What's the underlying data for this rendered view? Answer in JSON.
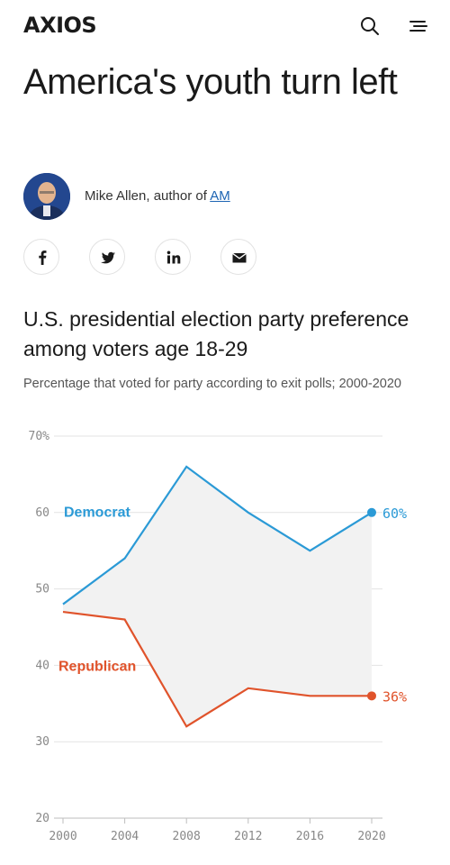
{
  "header": {
    "logo_text": "AXIOS",
    "search_icon": "search-icon",
    "menu_icon": "menu-icon"
  },
  "article": {
    "headline": "America's youth turn left",
    "byline_prefix": "Mike Allen, author of ",
    "byline_link": "AM"
  },
  "share": {
    "icons": [
      "facebook-icon",
      "twitter-icon",
      "linkedin-icon",
      "email-icon"
    ]
  },
  "colors": {
    "democrat": "#2b9ad6",
    "republican": "#e0532b",
    "fill": "#f2f2f2",
    "grid": "#e3e3e3"
  },
  "chart_data": {
    "type": "line",
    "title": "U.S. presidential election party preference among voters age 18-29",
    "subtitle": "Percentage that voted for party according to exit polls; 2000-2020",
    "x": [
      2000,
      2004,
      2008,
      2012,
      2016,
      2020
    ],
    "x_tick_labels": [
      "2000",
      "2004",
      "2008",
      "2012",
      "2016",
      "2020"
    ],
    "y_ticks": [
      20,
      30,
      40,
      50,
      60,
      70
    ],
    "y_tick_labels": [
      "20",
      "30",
      "40",
      "50",
      "60",
      "70%"
    ],
    "ylim": [
      20,
      70
    ],
    "grid": true,
    "area_between_series": true,
    "series": [
      {
        "name": "Democrat",
        "values": [
          48,
          54,
          66,
          60,
          55,
          60
        ],
        "end_label": "60%",
        "color": "#2b9ad6"
      },
      {
        "name": "Republican",
        "values": [
          47,
          46,
          32,
          37,
          36,
          36
        ],
        "end_label": "36%",
        "color": "#e0532b"
      }
    ]
  }
}
